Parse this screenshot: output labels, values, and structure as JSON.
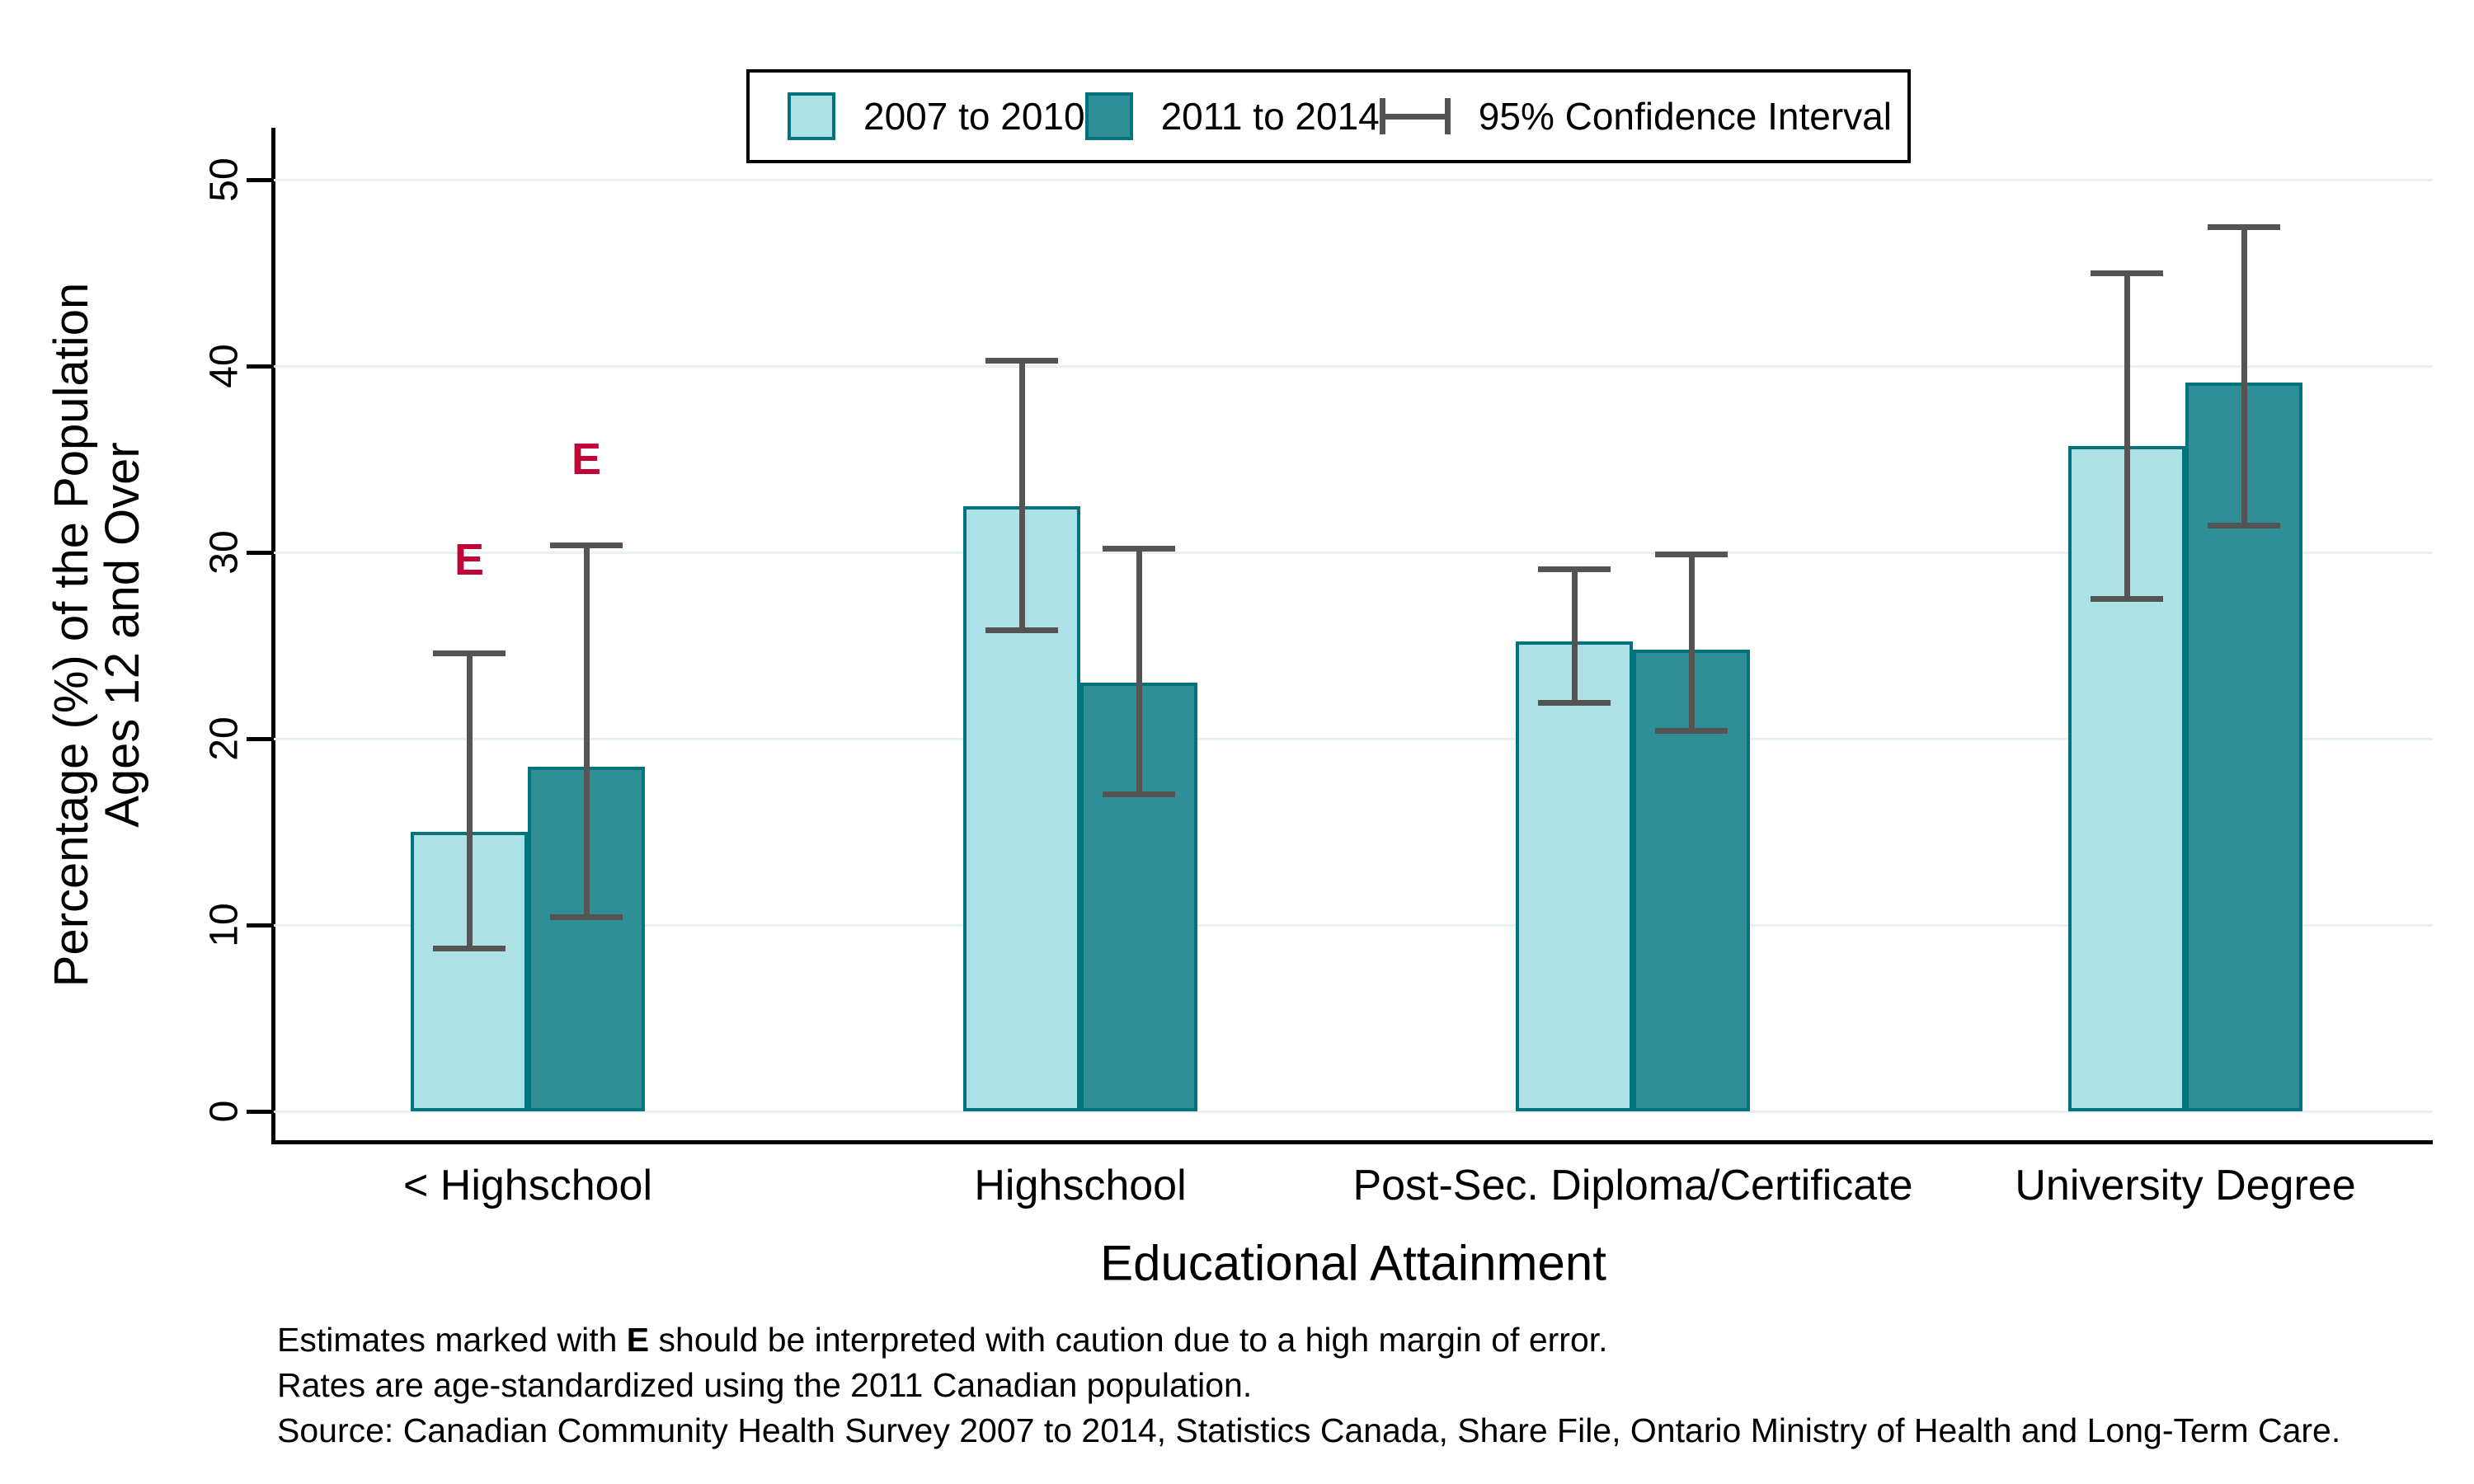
{
  "chart_data": {
    "type": "bar",
    "title": "",
    "xlabel": "Educational Attainment",
    "ylabel_lines": [
      "Percentage (%) of the Population",
      "Ages 12 and Over"
    ],
    "categories": [
      "< Highschool",
      "Highschool",
      "Post-Sec. Diploma/Certificate",
      "University Degree"
    ],
    "series": [
      {
        "name": "2007 to 2010",
        "color": "#ace2e6",
        "values": [
          15.0,
          32.5,
          25.2,
          35.7
        ],
        "ci_low": [
          8.7,
          25.8,
          21.9,
          27.5
        ],
        "ci_high": [
          24.6,
          40.3,
          29.1,
          45.0
        ]
      },
      {
        "name": "2011 to 2014",
        "color": "#2f8e96",
        "values": [
          18.5,
          23.0,
          24.8,
          39.1
        ],
        "ci_low": [
          10.4,
          17.0,
          20.4,
          31.4
        ],
        "ci_high": [
          30.4,
          30.2,
          29.9,
          47.5
        ]
      }
    ],
    "flags": [
      {
        "category": 0,
        "series": 0,
        "label": "E",
        "y": 29.6
      },
      {
        "category": 0,
        "series": 1,
        "label": "E",
        "y": 35.0
      }
    ],
    "yticks": [
      0,
      10,
      20,
      30,
      40,
      50
    ],
    "ylim": [
      0,
      55
    ],
    "grid": true,
    "legend_position": "top-inside",
    "legend": {
      "series_labels": [
        "2007 to 2010",
        "2011 to 2014"
      ],
      "ci_label": "95% Confidence Interval"
    },
    "colors": {
      "bar_border": "#00737d",
      "error_bar": "#545454",
      "flag": "#c10536",
      "gridline": "#e9f0f4",
      "axis": "#000000"
    }
  },
  "footnotes": {
    "line1_pre": "Estimates marked with ",
    "line1_bold": "E",
    "line1_post": " should be interpreted with caution due to a high margin of error.",
    "line2": "Rates are age-standardized using the 2011 Canadian population.",
    "line3": "Source: Canadian Community Health Survey 2007 to 2014, Statistics Canada, Share File, Ontario Ministry of Health and Long-Term Care."
  }
}
